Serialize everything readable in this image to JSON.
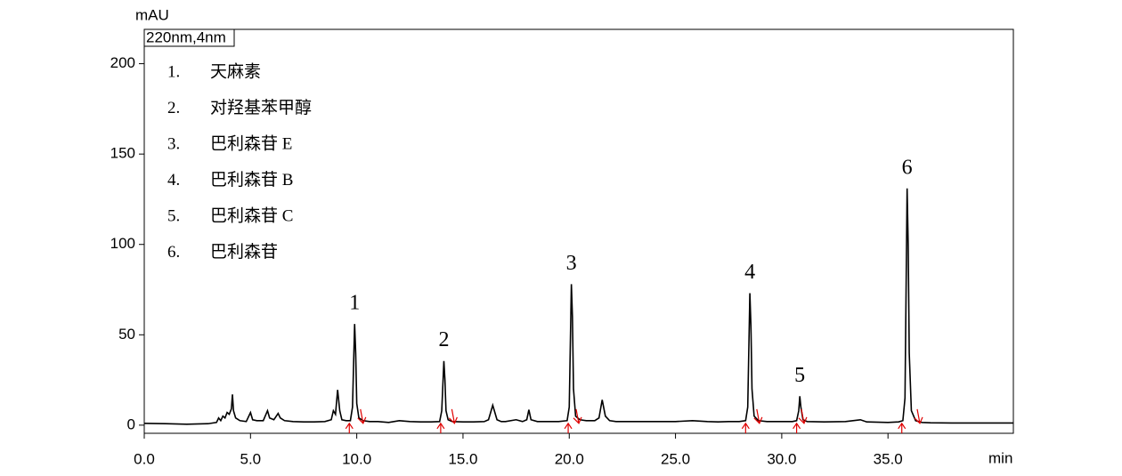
{
  "chart_data": {
    "type": "line",
    "y_axis_label": "mAU",
    "x_axis_label": "min",
    "detector_label": "220nm,4nm",
    "color": "#000000",
    "marker_color": "#e00000",
    "xlim": [
      0,
      40.9
    ],
    "ylim": [
      -4.5,
      219
    ],
    "xticks": [
      {
        "value": 0,
        "label": "0.0"
      },
      {
        "value": 5,
        "label": "5.0"
      },
      {
        "value": 10,
        "label": "10.0"
      },
      {
        "value": 15,
        "label": "15.0"
      },
      {
        "value": 20,
        "label": "20.0"
      },
      {
        "value": 25,
        "label": "25.0"
      },
      {
        "value": 30,
        "label": "30.0"
      },
      {
        "value": 35,
        "label": "35.0"
      }
    ],
    "yticks": [
      0,
      50,
      100,
      150,
      200
    ],
    "compound_list": [
      {
        "number": "1.",
        "name": "天麻素"
      },
      {
        "number": "2.",
        "name": "对羟基苯甲醇"
      },
      {
        "number": "3.",
        "name": "巴利森苷 E"
      },
      {
        "number": "4.",
        "name": "巴利森苷 B"
      },
      {
        "number": "5.",
        "name": "巴利森苷 C"
      },
      {
        "number": "6.",
        "name": "巴利森苷"
      }
    ],
    "peaks": [
      {
        "label": "1",
        "x": 9.9,
        "y": 56,
        "start": 9.65,
        "end": 10.3
      },
      {
        "label": "2",
        "x": 14.1,
        "y": 35.5,
        "start": 13.95,
        "end": 14.6
      },
      {
        "label": "3",
        "x": 20.1,
        "y": 78,
        "start": 19.95,
        "end": 20.45
      },
      {
        "label": "4",
        "x": 28.5,
        "y": 73,
        "start": 28.3,
        "end": 28.95
      },
      {
        "label": "5",
        "x": 30.85,
        "y": 16,
        "start": 30.7,
        "end": 31.05
      },
      {
        "label": "6",
        "x": 35.9,
        "y": 131,
        "start": 35.65,
        "end": 36.5
      }
    ],
    "x": [
      0,
      1,
      2,
      3,
      3.4,
      3.5,
      3.6,
      3.7,
      3.8,
      3.9,
      4.0,
      4.1,
      4.15,
      4.2,
      4.3,
      4.5,
      4.8,
      5.0,
      5.1,
      5.3,
      5.6,
      5.8,
      5.9,
      6.1,
      6.3,
      6.4,
      6.6,
      7.0,
      7.5,
      8.0,
      8.5,
      8.8,
      8.9,
      9.0,
      9.1,
      9.2,
      9.3,
      9.5,
      9.7,
      9.8,
      9.9,
      9.95,
      10.0,
      10.1,
      10.3,
      10.6,
      11,
      11.5,
      12,
      12.5,
      13,
      13.5,
      13.9,
      14.0,
      14.1,
      14.15,
      14.2,
      14.3,
      14.5,
      15,
      15.5,
      16,
      16.2,
      16.4,
      16.6,
      16.8,
      17,
      17.5,
      17.8,
      18.0,
      18.1,
      18.2,
      18.5,
      19,
      19.5,
      19.9,
      20.0,
      20.1,
      20.15,
      20.2,
      20.3,
      20.5,
      20.8,
      21.2,
      21.4,
      21.55,
      21.7,
      21.9,
      22.2,
      23,
      24,
      25,
      25.8,
      26.5,
      27,
      27.5,
      28,
      28.3,
      28.4,
      28.5,
      28.55,
      28.6,
      28.7,
      28.9,
      29.3,
      30,
      30.5,
      30.7,
      30.8,
      30.85,
      30.9,
      31.0,
      31.2,
      32,
      33,
      33.7,
      34,
      35,
      35.5,
      35.7,
      35.8,
      35.9,
      35.95,
      36.0,
      36.1,
      36.3,
      36.6,
      37,
      38,
      39,
      40,
      40.9
    ],
    "values": [
      1,
      0.8,
      0.5,
      0.8,
      1.5,
      4,
      2.5,
      5,
      4,
      7,
      6,
      9,
      17,
      8,
      4,
      2.5,
      2,
      7,
      3,
      2.5,
      2.5,
      8,
      4,
      3,
      6.5,
      4,
      2.5,
      2,
      1.8,
      1.8,
      2,
      3,
      8,
      6,
      19.5,
      8,
      3,
      2.5,
      2.5,
      10,
      56,
      40,
      12,
      4,
      2.5,
      2,
      2,
      1.5,
      2.5,
      2,
      1.8,
      1.8,
      2,
      8,
      35.5,
      25,
      8,
      3,
      2,
      1.8,
      1.8,
      2,
      3,
      11,
      3,
      2,
      2,
      3,
      2,
      3,
      8.5,
      3,
      2,
      2,
      2,
      2.5,
      10,
      78,
      60,
      20,
      5,
      3,
      2.5,
      2.5,
      4,
      14,
      5,
      2.5,
      2,
      2,
      2,
      2,
      2.5,
      2,
      1.8,
      2,
      2,
      2.5,
      10,
      73,
      55,
      20,
      5,
      2.5,
      2,
      2,
      2,
      2.5,
      8,
      16,
      10,
      3,
      2,
      1.8,
      2,
      3,
      1.8,
      1.5,
      1.8,
      2.5,
      15,
      131,
      100,
      40,
      8,
      2.5,
      1.5,
      1.3,
      1.2,
      1.2,
      1.2,
      1.2
    ]
  }
}
